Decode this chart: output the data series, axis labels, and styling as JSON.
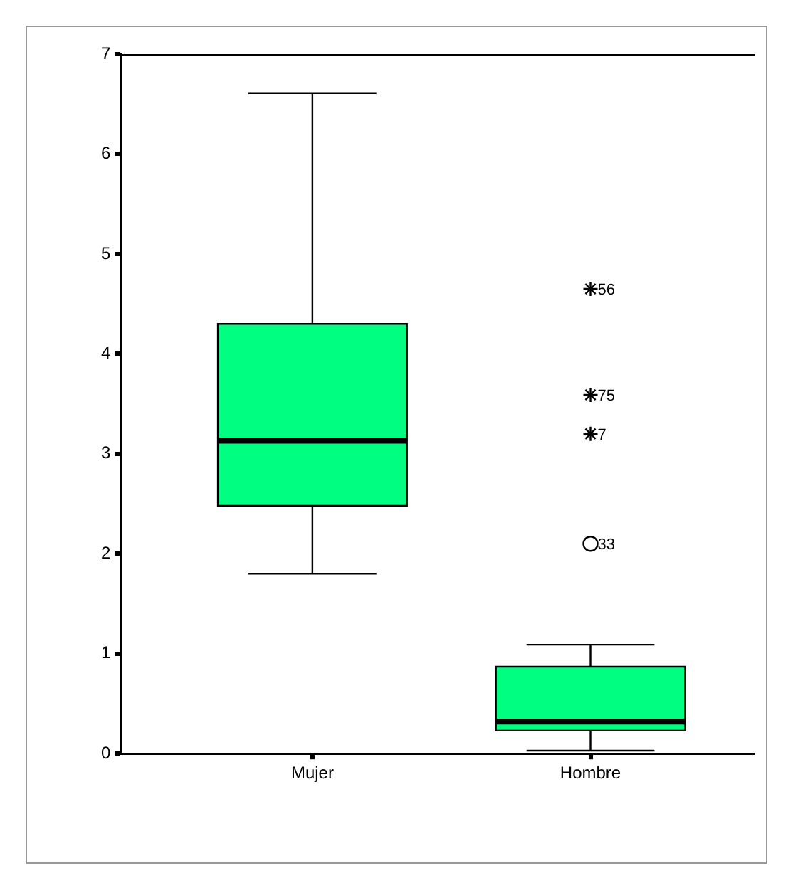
{
  "chart_data": {
    "type": "box",
    "categories": [
      "Mujer",
      "Hombre"
    ],
    "color": "#00ff80",
    "boxes": [
      {
        "low": 1.8,
        "q1": 2.48,
        "median": 3.13,
        "q3": 4.3,
        "high": 6.61
      },
      {
        "low": 0.03,
        "q1": 0.23,
        "median": 0.32,
        "q3": 0.87,
        "high": 1.09
      }
    ],
    "series": [
      {
        "type": "scatter",
        "marker": "circle",
        "color": "#000000",
        "x": [
          "Hombre"
        ],
        "values": [
          2.1
        ]
      },
      {
        "type": "scatter",
        "marker": "cross",
        "color": "#000000",
        "x": [
          "Hombre",
          "Hombre",
          "Hombre"
        ],
        "values": [
          4.65,
          3.59,
          3.2
        ]
      }
    ],
    "annotations": [
      {
        "text": "56",
        "x": "Hombre",
        "y": 4.65
      },
      {
        "text": "75",
        "x": "Hombre",
        "y": 3.59
      },
      {
        "text": "7",
        "x": "Hombre",
        "y": 3.2
      },
      {
        "text": "33",
        "x": "Hombre",
        "y": 2.1
      }
    ],
    "ylim": [
      0,
      7
    ],
    "yticks": [
      0,
      1,
      2,
      3,
      4,
      5,
      6,
      7
    ],
    "grid": false,
    "legend": false
  }
}
